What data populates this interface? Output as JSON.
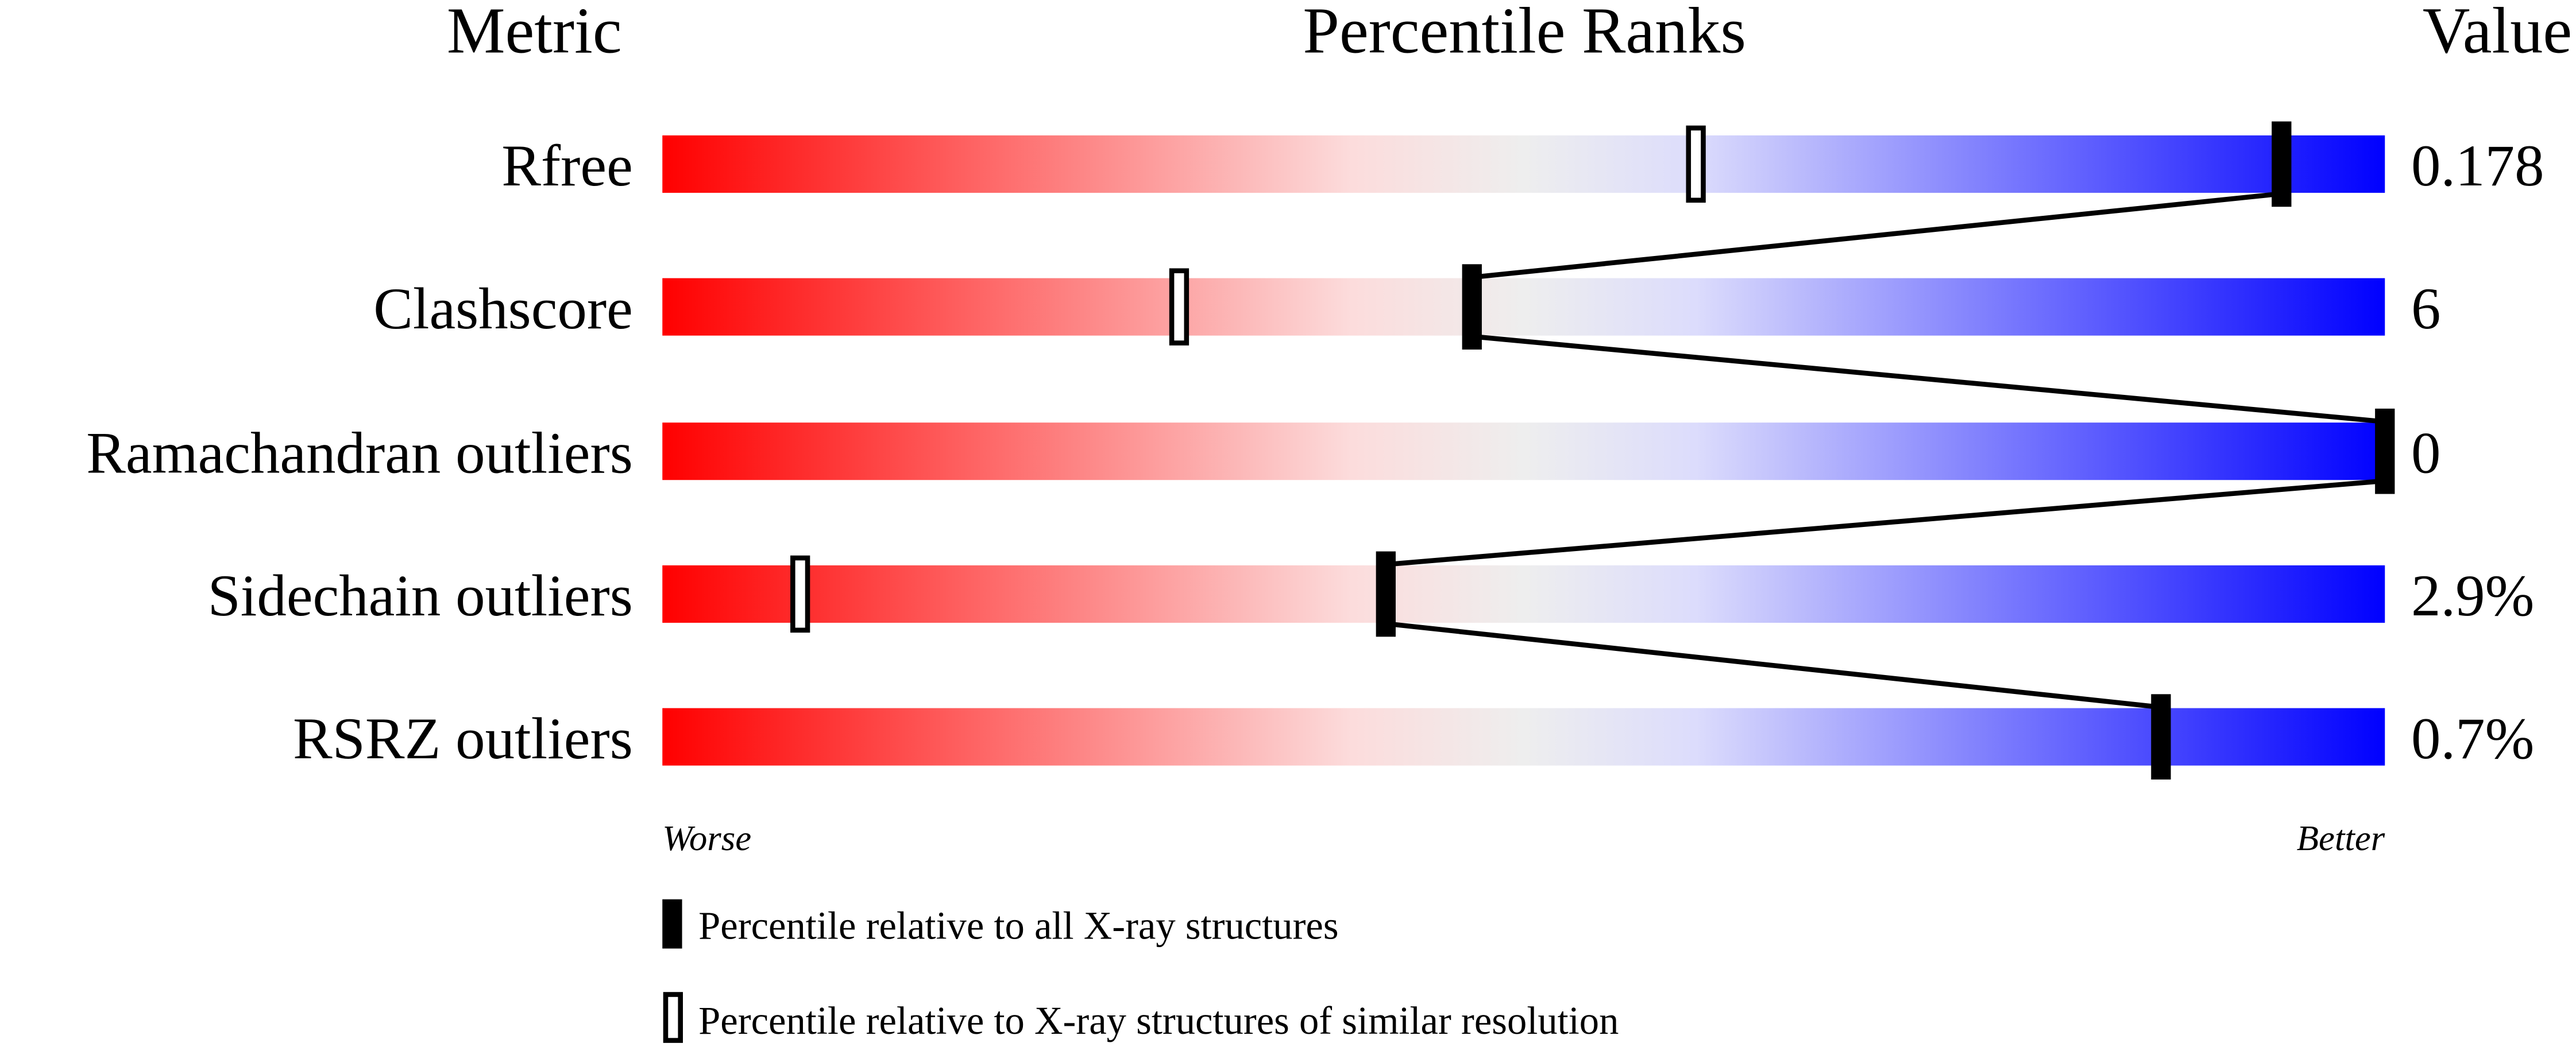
{
  "chart_data": {
    "type": "percentile-slider",
    "headers": {
      "metric": "Metric",
      "percentile": "Percentile Ranks",
      "value": "Value"
    },
    "xlim": [
      0,
      100
    ],
    "scale_labels": {
      "low": "Worse",
      "high": "Better"
    },
    "gradient_colors": [
      "#ff0000",
      "#fcdcdc",
      "#eeeeee",
      "#dcdcfc",
      "#0000ff"
    ],
    "metrics": [
      {
        "name": "Rfree",
        "value": "0.178",
        "percentile_all": 94,
        "percentile_similar": 60
      },
      {
        "name": "Clashscore",
        "value": "6",
        "percentile_all": 47,
        "percentile_similar": 30
      },
      {
        "name": "Ramachandran outliers",
        "value": "0",
        "percentile_all": 100,
        "percentile_similar": null
      },
      {
        "name": "Sidechain outliers",
        "value": "2.9%",
        "percentile_all": 42,
        "percentile_similar": 8
      },
      {
        "name": "RSRZ outliers",
        "value": "0.7%",
        "percentile_all": 87,
        "percentile_similar": null
      }
    ],
    "legend": [
      {
        "marker": "filled",
        "label": "Percentile relative to all X-ray structures"
      },
      {
        "marker": "outline",
        "label": "Percentile relative to X-ray structures of similar resolution"
      }
    ]
  }
}
